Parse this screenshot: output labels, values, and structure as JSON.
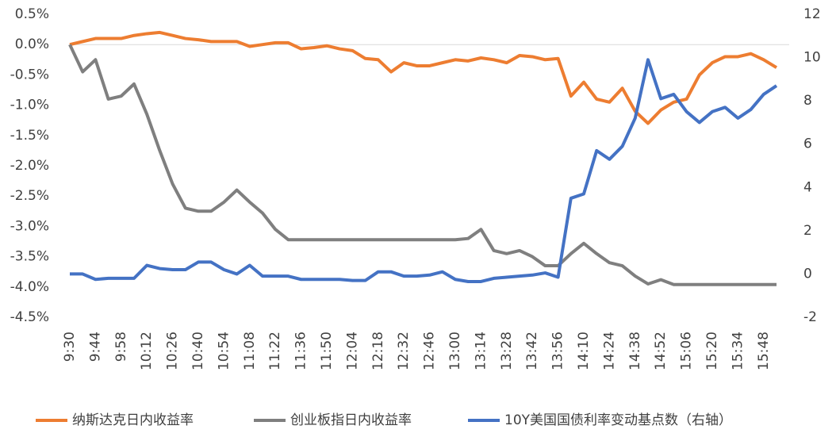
{
  "chart_data": {
    "type": "line",
    "categories": [
      "9:30",
      null,
      "9:44",
      null,
      "9:58",
      null,
      "10:12",
      null,
      "10:26",
      null,
      "10:40",
      null,
      "10:54",
      null,
      "11:08",
      null,
      "11:22",
      null,
      "11:36",
      null,
      "11:50",
      null,
      "12:04",
      null,
      "12:18",
      null,
      "12:32",
      null,
      "12:46",
      null,
      "13:00",
      null,
      "13:14",
      null,
      "13:28",
      null,
      "13:42",
      null,
      "13:56",
      null,
      "14:10",
      null,
      "14:24",
      null,
      "14:38",
      null,
      "14:52",
      null,
      "15:06",
      null,
      "15:20",
      null,
      "15:34",
      null,
      "15:48",
      null
    ],
    "ylim": [
      -4.5,
      0.5
    ],
    "yticks": [
      {
        "value": 0.5,
        "label": "0.5%"
      },
      {
        "value": 0,
        "label": "0.0%"
      },
      {
        "value": -0.5,
        "label": "-0.5%"
      },
      {
        "value": -1,
        "label": "-1.0%"
      },
      {
        "value": -1.5,
        "label": "-1.5%"
      },
      {
        "value": -2,
        "label": "-2.0%"
      },
      {
        "value": -2.5,
        "label": "-2.5%"
      },
      {
        "value": -3,
        "label": "-3.0%"
      },
      {
        "value": -3.5,
        "label": "-3.5%"
      },
      {
        "value": -4,
        "label": "-4.0%"
      },
      {
        "value": -4.5,
        "label": "-4.5%"
      }
    ],
    "y2lim": [
      -2,
      12
    ],
    "y2ticks": [
      -2,
      0,
      2,
      4,
      6,
      8,
      10,
      12
    ],
    "legend": "bottom",
    "series": [
      {
        "name": "纳斯达克日内收益率",
        "color": "#ed7d31",
        "values": [
          0,
          0.05,
          0.1,
          0.1,
          0.1,
          0.15,
          0.18,
          0.2,
          0.15,
          0.1,
          0.08,
          0.05,
          0.05,
          0.05,
          -0.03,
          0,
          0.03,
          0.03,
          -0.07,
          -0.05,
          -0.02,
          -0.07,
          -0.1,
          -0.23,
          -0.25,
          -0.45,
          -0.3,
          -0.35,
          -0.35,
          -0.3,
          -0.25,
          -0.27,
          -0.22,
          -0.25,
          -0.3,
          -0.18,
          -0.2,
          -0.25,
          -0.23,
          -0.85,
          -0.62,
          -0.9,
          -0.95,
          -0.72,
          -1.1,
          -1.3,
          -1.08,
          -0.95,
          -0.9,
          -0.5,
          -0.3,
          -0.2,
          -0.2,
          -0.15,
          -0.25,
          -0.38
        ]
      },
      {
        "name": "创业板指日内收益率",
        "color": "#7f7f7f",
        "values": [
          0,
          -0.45,
          -0.25,
          -0.9,
          -0.85,
          -0.65,
          -1.15,
          -1.75,
          -2.3,
          -2.7,
          -2.75,
          -2.75,
          -2.6,
          -2.4,
          -2.6,
          -2.78,
          -3.05,
          -3.22,
          -3.22,
          -3.22,
          -3.22,
          -3.22,
          -3.22,
          -3.22,
          -3.22,
          -3.22,
          -3.22,
          -3.22,
          -3.22,
          -3.22,
          -3.22,
          -3.2,
          -3.05,
          -3.4,
          -3.45,
          -3.4,
          -3.5,
          -3.65,
          -3.65,
          -3.45,
          -3.28,
          -3.45,
          -3.6,
          -3.65,
          -3.82,
          -3.95,
          -3.88,
          -3.96,
          -3.96,
          -3.96,
          -3.96,
          -3.96,
          -3.96,
          -3.96,
          -3.96,
          -3.96
        ]
      },
      {
        "name": "10Y美国国债利率变动基点数（右轴）",
        "color": "#4472c4",
        "axis": "y2",
        "values": [
          0,
          0,
          -0.25,
          -0.2,
          -0.2,
          -0.2,
          0.4,
          0.25,
          0.2,
          0.2,
          0.55,
          0.55,
          0.2,
          0,
          0.4,
          -0.1,
          -0.1,
          -0.1,
          -0.25,
          -0.25,
          -0.25,
          -0.25,
          -0.3,
          -0.3,
          0.1,
          0.1,
          -0.1,
          -0.1,
          -0.05,
          0.1,
          -0.25,
          -0.35,
          -0.35,
          -0.2,
          -0.15,
          -0.1,
          -0.05,
          0.05,
          -0.15,
          3.5,
          3.7,
          5.7,
          5.3,
          5.9,
          7.2,
          9.9,
          8.1,
          8.3,
          7.5,
          7.0,
          7.5,
          7.7,
          7.2,
          7.6,
          8.3,
          8.7
        ]
      }
    ]
  }
}
